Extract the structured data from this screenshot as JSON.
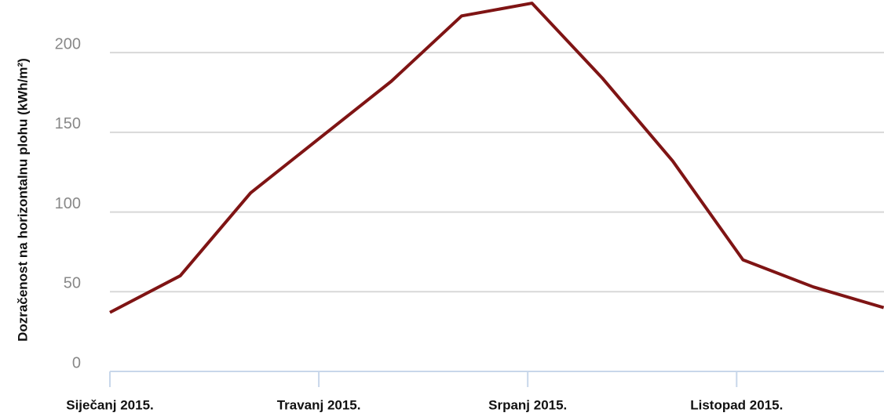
{
  "chart_data": {
    "type": "line",
    "y_label": "Dozračenost na horizontalnu plohu (kWh/m²)",
    "categories": [
      "Siječanj 2015.",
      null,
      null,
      "Travanj 2015.",
      null,
      null,
      "Srpanj 2015.",
      null,
      null,
      "Listopad 2015.",
      null,
      null
    ],
    "series": [
      {
        "name": "Dozračenost",
        "color": "#7f1414",
        "values": [
          37,
          60,
          112,
          147,
          182,
          223,
          231,
          184,
          132,
          70,
          53,
          40
        ]
      }
    ],
    "ylim": [
      0,
      233
    ],
    "yticks": [
      0,
      50,
      100,
      150,
      200
    ],
    "grid": true
  }
}
